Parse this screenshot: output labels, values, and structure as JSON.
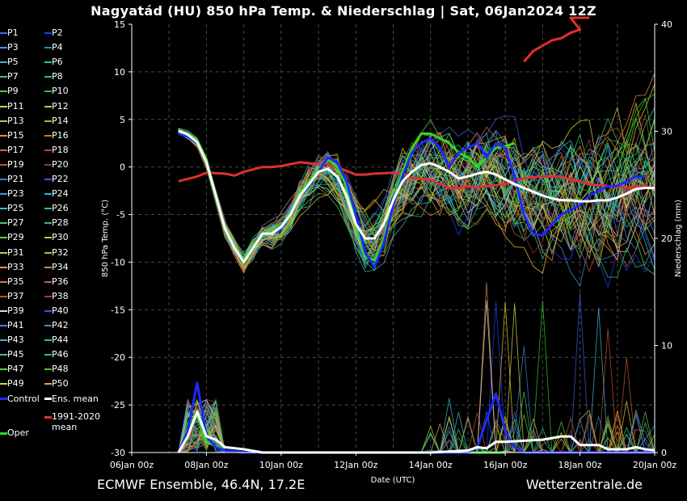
{
  "title": "Nagyatád  (HU)  850 hPa Temp. & Niederschlag | Sat, 06Jan2024 12Z",
  "footer_left": "ECMWF Ensemble, 46.4N, 17.2E",
  "footer_right": "Wetterzentrale.de",
  "legend": [
    {
      "label": "P1",
      "color": "#4169e1"
    },
    {
      "label": "P2",
      "color": "#1e3cff"
    },
    {
      "label": "P3",
      "color": "#4f8fd8"
    },
    {
      "label": "P4",
      "color": "#2a8ac8"
    },
    {
      "label": "P5",
      "color": "#3fb0c0"
    },
    {
      "label": "P6",
      "color": "#2fbfa8"
    },
    {
      "label": "P7",
      "color": "#3ec878"
    },
    {
      "label": "P8",
      "color": "#2ec060"
    },
    {
      "label": "P9",
      "color": "#4cd040"
    },
    {
      "label": "P10",
      "color": "#28c828"
    },
    {
      "label": "P11",
      "color": "#d8d040"
    },
    {
      "label": "P12",
      "color": "#e0c030"
    },
    {
      "label": "P13",
      "color": "#d8b850"
    },
    {
      "label": "P14",
      "color": "#e0a030"
    },
    {
      "label": "P15",
      "color": "#e09040"
    },
    {
      "label": "P16",
      "color": "#d87a28"
    },
    {
      "label": "P17",
      "color": "#d06848"
    },
    {
      "label": "P18",
      "color": "#c04838"
    },
    {
      "label": "P19",
      "color": "#b85a30"
    },
    {
      "label": "P20",
      "color": "#a03820"
    },
    {
      "label": "P21",
      "color": "#4878e0"
    },
    {
      "label": "P22",
      "color": "#2f5fe0"
    },
    {
      "label": "P23",
      "color": "#3c9ad0"
    },
    {
      "label": "P24",
      "color": "#3ab0e0"
    },
    {
      "label": "P25",
      "color": "#40c0b0"
    },
    {
      "label": "P26",
      "color": "#30c090"
    },
    {
      "label": "P27",
      "color": "#48c868"
    },
    {
      "label": "P28",
      "color": "#38c850"
    },
    {
      "label": "P29",
      "color": "#60d040"
    },
    {
      "label": "P30",
      "color": "#c8c840"
    },
    {
      "label": "P31",
      "color": "#d8c838"
    },
    {
      "label": "P32",
      "color": "#d8a848"
    },
    {
      "label": "P33",
      "color": "#e09838"
    },
    {
      "label": "P34",
      "color": "#d88a38"
    },
    {
      "label": "P35",
      "color": "#d07848"
    },
    {
      "label": "P36",
      "color": "#c86030"
    },
    {
      "label": "P37",
      "color": "#c04c30"
    },
    {
      "label": "P38",
      "color": "#a84028"
    },
    {
      "label": "P39",
      "color": "#d8d8d8"
    },
    {
      "label": "P40",
      "color": "#3858e0"
    },
    {
      "label": "P41",
      "color": "#4a80e0"
    },
    {
      "label": "P42",
      "color": "#3090d0"
    },
    {
      "label": "P43",
      "color": "#40b0c8"
    },
    {
      "label": "P44",
      "color": "#30c0a0"
    },
    {
      "label": "P45",
      "color": "#48c880"
    },
    {
      "label": "P46",
      "color": "#30c060"
    },
    {
      "label": "P47",
      "color": "#58d048"
    },
    {
      "label": "P48",
      "color": "#40c838"
    },
    {
      "label": "P49",
      "color": "#d0d048"
    },
    {
      "label": "P50",
      "color": "#d8b040"
    },
    {
      "label": "Control",
      "color": "#1e28ff"
    },
    {
      "label": "Ens. mean",
      "color": "#ffffff"
    },
    {
      "label": "Oper",
      "color": "#28dc28"
    },
    {
      "label": "1991-2020 mean",
      "color": "#e03030"
    }
  ],
  "chart_data": {
    "type": "line",
    "title": "Nagyatád  (HU)  850 hPa Temp. & Niederschlag | Sat, 06Jan2024 12Z",
    "xlabel": "Date (UTC)",
    "ylabel": "850 hPa Temp. (°C)",
    "y2label": "Niederschlag (mm)",
    "x_ticks": [
      "06Jan 00z",
      "08Jan 00z",
      "10Jan 00z",
      "12Jan 00z",
      "14Jan 00z",
      "16Jan 00z",
      "18Jan 00z",
      "20Jan 00z"
    ],
    "x_range_days": [
      0,
      14
    ],
    "ylim": [
      -30,
      15
    ],
    "y_ticks": [
      15,
      10,
      5,
      0,
      -5,
      -10,
      -15,
      -20,
      -25,
      -30
    ],
    "y2lim": [
      0,
      40
    ],
    "y2_ticks": [
      40,
      30,
      20,
      10,
      0
    ],
    "grid": true,
    "temperature_series": [
      {
        "name": "Control",
        "color": "#1e28ff",
        "points": [
          [
            1.25,
            3.5
          ],
          [
            1.5,
            3.2
          ],
          [
            1.75,
            2.5
          ],
          [
            2.0,
            0.5
          ],
          [
            2.25,
            -3
          ],
          [
            2.5,
            -6.5
          ],
          [
            2.75,
            -8.5
          ],
          [
            3.0,
            -10
          ],
          [
            3.25,
            -8.5
          ],
          [
            3.5,
            -7
          ],
          [
            3.75,
            -7
          ],
          [
            4.0,
            -6.5
          ],
          [
            4.25,
            -5
          ],
          [
            4.5,
            -3
          ],
          [
            4.75,
            -2
          ],
          [
            5.0,
            -0.5
          ],
          [
            5.25,
            1
          ],
          [
            5.5,
            0.5
          ],
          [
            5.75,
            -1.5
          ],
          [
            6.0,
            -5
          ],
          [
            6.25,
            -9
          ],
          [
            6.5,
            -10.5
          ],
          [
            6.75,
            -8
          ],
          [
            7.0,
            -4
          ],
          [
            7.25,
            -1
          ],
          [
            7.5,
            1.5
          ],
          [
            7.75,
            2.5
          ],
          [
            8.0,
            3
          ],
          [
            8.25,
            2
          ],
          [
            8.5,
            0
          ],
          [
            8.75,
            1.5
          ],
          [
            9.0,
            2
          ],
          [
            9.25,
            2.5
          ],
          [
            9.5,
            1
          ],
          [
            9.75,
            2.5
          ],
          [
            10.0,
            2
          ],
          [
            10.25,
            -1
          ],
          [
            10.5,
            -5
          ],
          [
            10.75,
            -7
          ],
          [
            11.0,
            -7.2
          ],
          [
            11.25,
            -6
          ],
          [
            11.5,
            -5
          ],
          [
            11.75,
            -4.5
          ],
          [
            12.0,
            -4
          ],
          [
            12.25,
            -3
          ],
          [
            12.5,
            -2.5
          ],
          [
            12.75,
            -2
          ],
          [
            13.0,
            -2
          ],
          [
            13.25,
            -1.5
          ],
          [
            13.5,
            -1
          ],
          [
            13.75,
            -1
          ]
        ]
      },
      {
        "name": "Oper",
        "color": "#28dc28",
        "points": [
          [
            1.25,
            3.8
          ],
          [
            1.5,
            3.5
          ],
          [
            1.75,
            2.8
          ],
          [
            2.0,
            0.8
          ],
          [
            2.25,
            -3
          ],
          [
            2.5,
            -6.5
          ],
          [
            2.75,
            -8.5
          ],
          [
            3.0,
            -9.8
          ],
          [
            3.25,
            -8.3
          ],
          [
            3.5,
            -7
          ],
          [
            3.75,
            -6.8
          ],
          [
            4.0,
            -6.2
          ],
          [
            4.25,
            -4.8
          ],
          [
            4.5,
            -2.8
          ],
          [
            4.75,
            -1.5
          ],
          [
            5.0,
            -0.3
          ],
          [
            5.25,
            0.8
          ],
          [
            5.5,
            0
          ],
          [
            5.75,
            -2
          ],
          [
            6.0,
            -6
          ],
          [
            6.25,
            -9.5
          ],
          [
            6.5,
            -9.8
          ],
          [
            6.75,
            -7.5
          ],
          [
            7.0,
            -3.5
          ],
          [
            7.25,
            -0.5
          ],
          [
            7.5,
            2
          ],
          [
            7.75,
            3.5
          ],
          [
            8.0,
            3.5
          ],
          [
            8.25,
            3
          ],
          [
            8.5,
            2.5
          ],
          [
            8.75,
            1.5
          ],
          [
            9.0,
            1
          ],
          [
            9.25,
            0
          ],
          [
            9.5,
            1
          ],
          [
            9.75,
            2
          ],
          [
            10.0,
            2.2
          ],
          [
            10.25,
            2.5
          ]
        ]
      },
      {
        "name": "Ens. mean",
        "color": "#ffffff",
        "points": [
          [
            1.25,
            3.8
          ],
          [
            1.5,
            3.4
          ],
          [
            1.75,
            2.6
          ],
          [
            2.0,
            0.5
          ],
          [
            2.25,
            -3
          ],
          [
            2.5,
            -6.5
          ],
          [
            2.75,
            -8.5
          ],
          [
            3.0,
            -10
          ],
          [
            3.25,
            -8.5
          ],
          [
            3.5,
            -7
          ],
          [
            3.75,
            -7
          ],
          [
            4.0,
            -6.3
          ],
          [
            4.25,
            -5
          ],
          [
            4.5,
            -3
          ],
          [
            4.75,
            -1.8
          ],
          [
            5.0,
            -0.5
          ],
          [
            5.25,
            -0.2
          ],
          [
            5.5,
            -1
          ],
          [
            5.75,
            -3
          ],
          [
            6.0,
            -6
          ],
          [
            6.25,
            -7.5
          ],
          [
            6.5,
            -7.5
          ],
          [
            6.75,
            -6
          ],
          [
            7.0,
            -3.5
          ],
          [
            7.25,
            -1.5
          ],
          [
            7.5,
            -0.5
          ],
          [
            7.75,
            0.2
          ],
          [
            8.0,
            0.4
          ],
          [
            8.25,
            0
          ],
          [
            8.5,
            -0.5
          ],
          [
            8.75,
            -1.2
          ],
          [
            9.0,
            -1
          ],
          [
            9.25,
            -0.7
          ],
          [
            9.5,
            -0.5
          ],
          [
            9.75,
            -0.8
          ],
          [
            10.0,
            -1.3
          ],
          [
            10.25,
            -1.8
          ],
          [
            10.5,
            -2.2
          ],
          [
            10.75,
            -2.6
          ],
          [
            11.0,
            -3
          ],
          [
            11.25,
            -3.3
          ],
          [
            11.5,
            -3.5
          ],
          [
            11.75,
            -3.5
          ],
          [
            12.0,
            -3.6
          ],
          [
            12.25,
            -3.6
          ],
          [
            12.5,
            -3.5
          ],
          [
            12.75,
            -3.5
          ],
          [
            13.0,
            -3.2
          ],
          [
            13.25,
            -2.8
          ],
          [
            13.5,
            -2.3
          ],
          [
            13.75,
            -2.2
          ],
          [
            14.0,
            -2.2
          ]
        ]
      },
      {
        "name": "1991-2020 mean",
        "color": "#e03030",
        "points": [
          [
            1.25,
            -1.5
          ],
          [
            1.75,
            -1
          ],
          [
            2.0,
            -0.6
          ],
          [
            2.5,
            -0.7
          ],
          [
            2.75,
            -0.9
          ],
          [
            3.0,
            -0.5
          ],
          [
            3.5,
            0
          ],
          [
            3.75,
            0
          ],
          [
            4.0,
            0.1
          ],
          [
            4.5,
            0.5
          ],
          [
            5.0,
            0.3
          ],
          [
            5.25,
            0.3
          ],
          [
            5.5,
            0
          ],
          [
            6.0,
            -0.8
          ],
          [
            6.25,
            -0.8
          ],
          [
            6.5,
            -0.7
          ],
          [
            7.0,
            -0.6
          ],
          [
            7.25,
            -0.7
          ],
          [
            7.5,
            -1.2
          ],
          [
            8.0,
            -1.3
          ],
          [
            8.25,
            -1.8
          ],
          [
            8.5,
            -2.2
          ],
          [
            8.75,
            -2.2
          ],
          [
            9.0,
            -2.0
          ],
          [
            9.25,
            -2.2
          ],
          [
            9.5,
            -2.0
          ],
          [
            10.0,
            -1.8
          ],
          [
            10.25,
            -1.5
          ],
          [
            10.5,
            -1.2
          ],
          [
            11.0,
            -1.0
          ],
          [
            11.5,
            -1.0
          ],
          [
            11.75,
            -1.3
          ],
          [
            12.25,
            -1.8
          ],
          [
            12.75,
            -2.0
          ],
          [
            13.25,
            -2.2
          ],
          [
            13.5,
            -2.0
          ],
          [
            14.0,
            -2.2
          ]
        ]
      }
    ],
    "precip_series": [
      {
        "name": "Control",
        "color": "#1e28ff",
        "points": [
          [
            1.25,
            0
          ],
          [
            1.5,
            2
          ],
          [
            1.75,
            6.5
          ],
          [
            2.0,
            1.5
          ],
          [
            2.25,
            0.5
          ],
          [
            2.5,
            0.2
          ],
          [
            3.0,
            0
          ],
          [
            8.0,
            0
          ],
          [
            8.5,
            0
          ],
          [
            9.0,
            0
          ],
          [
            9.25,
            0.5
          ],
          [
            9.5,
            3
          ],
          [
            9.75,
            5.5
          ],
          [
            10.0,
            2
          ],
          [
            10.25,
            0.5
          ],
          [
            10.5,
            0
          ],
          [
            14.0,
            0
          ]
        ]
      },
      {
        "name": "Ens. mean",
        "color": "#ffffff",
        "points": [
          [
            1.25,
            0
          ],
          [
            1.5,
            1.5
          ],
          [
            1.75,
            3.8
          ],
          [
            2.0,
            1.5
          ],
          [
            2.25,
            1.2
          ],
          [
            2.5,
            0.5
          ],
          [
            3.0,
            0.3
          ],
          [
            3.5,
            0
          ],
          [
            8.0,
            0
          ],
          [
            8.5,
            0.1
          ],
          [
            9.0,
            0.2
          ],
          [
            9.25,
            0.5
          ],
          [
            9.5,
            0.4
          ],
          [
            9.75,
            1
          ],
          [
            10.0,
            1
          ],
          [
            10.5,
            1.1
          ],
          [
            11.0,
            1.2
          ],
          [
            11.5,
            1.5
          ],
          [
            11.75,
            1.5
          ],
          [
            12.0,
            0.7
          ],
          [
            12.5,
            0.7
          ],
          [
            12.75,
            0.3
          ],
          [
            13.25,
            0.3
          ],
          [
            13.5,
            0.5
          ],
          [
            13.75,
            0.3
          ],
          [
            14.0,
            0.2
          ]
        ]
      },
      {
        "name": "Oper",
        "color": "#28dc28",
        "points": [
          [
            1.25,
            0
          ],
          [
            1.5,
            2
          ],
          [
            1.75,
            3.5
          ],
          [
            2.0,
            1
          ],
          [
            2.5,
            0.2
          ],
          [
            3.0,
            0
          ],
          [
            10.0,
            0
          ]
        ]
      },
      {
        "name": "1991-2020 mean",
        "color": "#e03030",
        "points": [
          [
            10.5,
            36.5
          ],
          [
            10.75,
            37.5
          ],
          [
            11.0,
            38
          ],
          [
            11.25,
            38.5
          ],
          [
            11.5,
            38.7
          ],
          [
            11.75,
            39.2
          ],
          [
            12.0,
            39.5
          ],
          [
            11.75,
            40.6
          ],
          [
            12.25,
            40.6
          ]
        ]
      }
    ]
  }
}
